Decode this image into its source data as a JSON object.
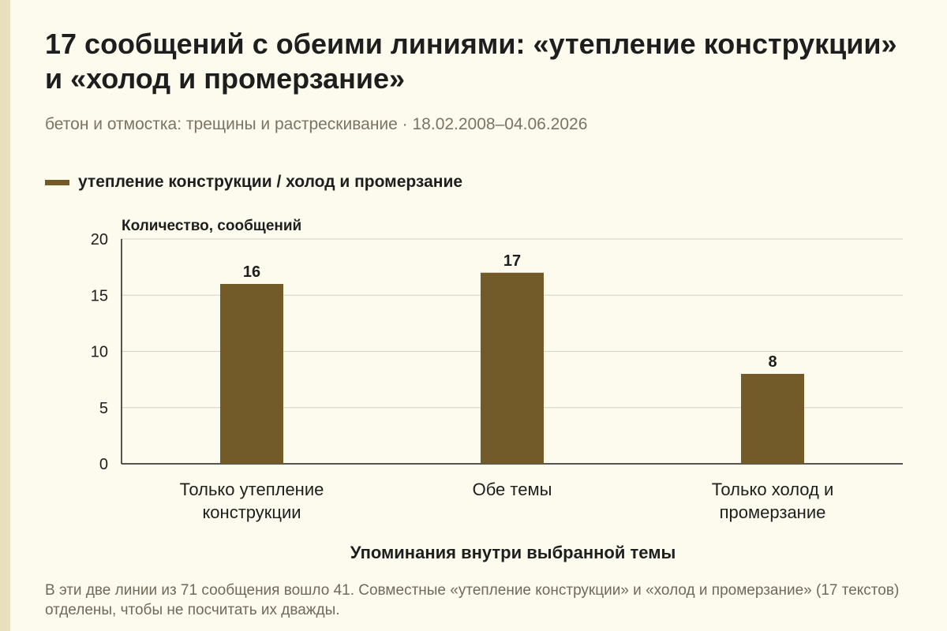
{
  "header": {
    "title": "17 сообщений с обеими линиями: «утепление конструкции» и «холод и промерзание»",
    "subtitle": "бетон и отмостка: трещины и растрескивание · 18.02.2008–04.06.2026"
  },
  "legend": {
    "label": "утепление конструкции / холод и промерзание",
    "color": "#725b28"
  },
  "chart_data": {
    "type": "bar",
    "categories": [
      [
        "Только утепление",
        "конструкции"
      ],
      [
        "Обе темы"
      ],
      [
        "Только холод и",
        "промерзание"
      ]
    ],
    "series": [
      {
        "name": "утепление конструкции / холод и промерзание",
        "values": [
          16,
          17,
          8
        ]
      }
    ],
    "ylabel": "Количество, сообщений",
    "xlabel": "Упоминания внутри выбранной темы",
    "ylim": [
      0,
      20
    ],
    "yticks": [
      0,
      5,
      10,
      15,
      20
    ],
    "grid": true,
    "legend_position": "top-left"
  },
  "footnote": "В эти две линии из 71 сообщения вошло 41. Совместные «утепление конструкции» и «холод и промерзание» (17 текстов) отделены, чтобы не посчитать их дважды."
}
